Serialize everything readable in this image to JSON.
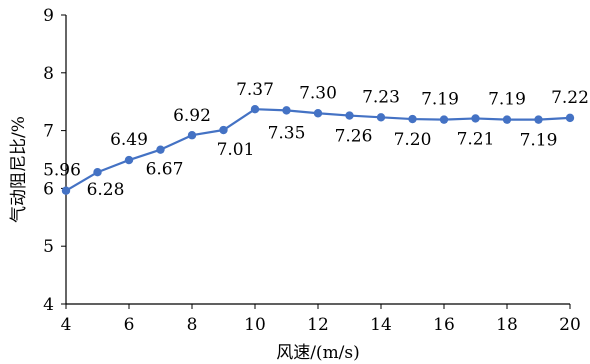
{
  "chart_data": {
    "type": "line",
    "title": "",
    "xlabel": "风速/(m/s)",
    "ylabel": "气动阻尼比/%",
    "xlim": [
      4,
      20
    ],
    "ylim": [
      4,
      9
    ],
    "xticks": [
      4,
      6,
      8,
      10,
      12,
      14,
      16,
      18,
      20
    ],
    "yticks": [
      4,
      5,
      6,
      7,
      8,
      9
    ],
    "grid": false,
    "legend": "none",
    "series": [
      {
        "color": "#4472c4",
        "marker": "circle",
        "x": [
          4,
          5,
          6,
          7,
          8,
          9,
          10,
          11,
          12,
          13,
          14,
          15,
          16,
          17,
          18,
          19,
          20
        ],
        "y": [
          5.96,
          6.28,
          6.49,
          6.67,
          6.92,
          7.01,
          7.37,
          7.35,
          7.3,
          7.26,
          7.23,
          7.2,
          7.19,
          7.21,
          7.19,
          7.19,
          7.22
        ],
        "labels": [
          "5.96",
          "6.28",
          "6.49",
          "6.67",
          "6.92",
          "7.01",
          "7.37",
          "7.35",
          "7.30",
          "7.26",
          "7.23",
          "7.20",
          "7.19",
          "7.21",
          "7.19",
          "7.19",
          "7.22"
        ]
      }
    ]
  }
}
